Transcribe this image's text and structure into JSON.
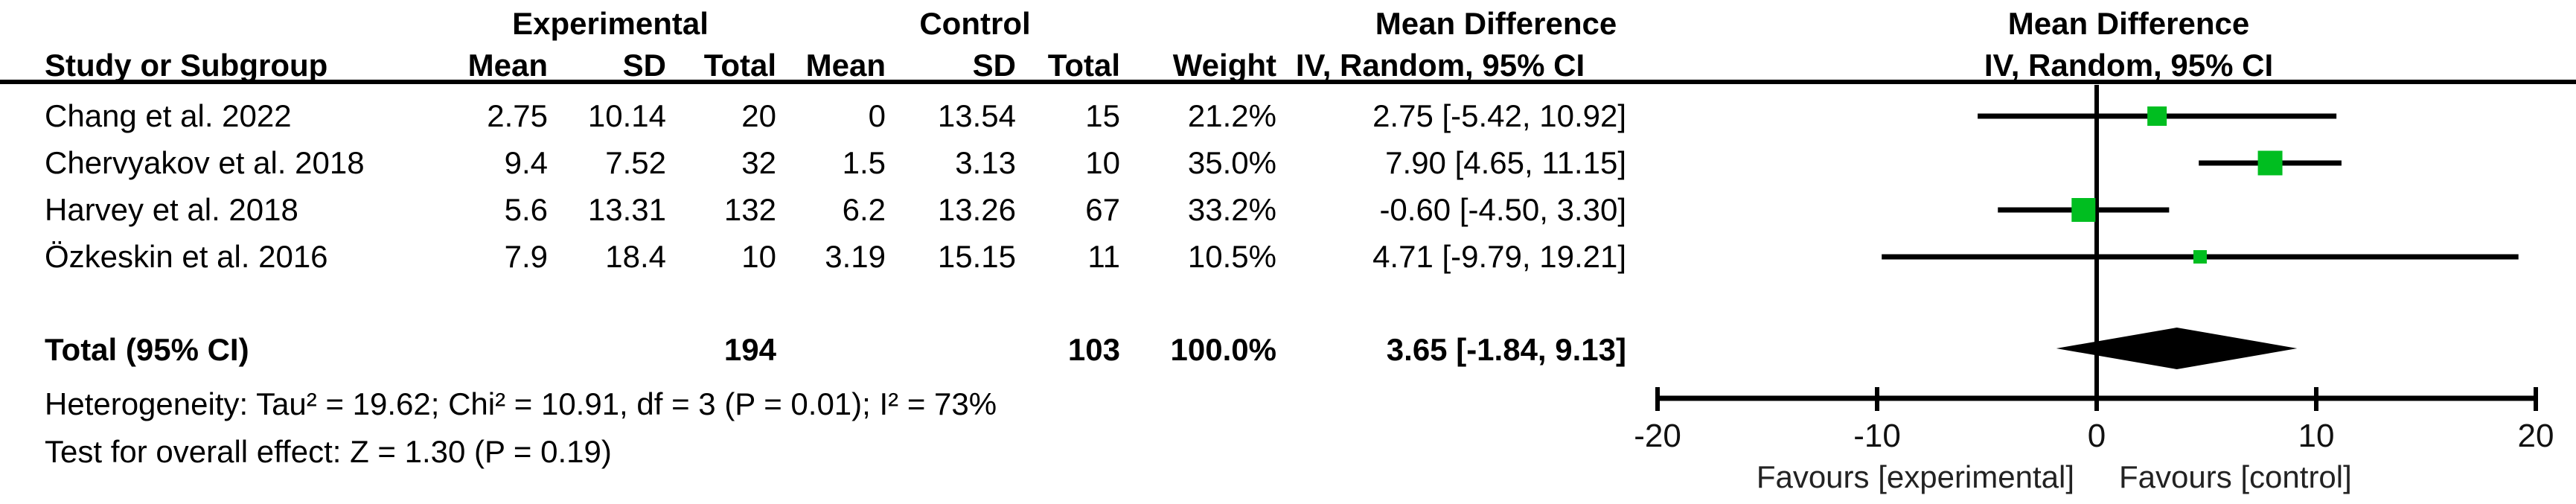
{
  "chart_data": {
    "type": "forest",
    "title": "",
    "effect_measure": "Mean Difference",
    "model": "IV, Random, 95% CI",
    "header": {
      "study": "Study or Subgroup",
      "group_experimental": "Experimental",
      "group_control": "Control",
      "mean": "Mean",
      "sd": "SD",
      "total": "Total",
      "weight": "Weight",
      "md_text_line1": "Mean Difference",
      "md_text_line2": "IV, Random, 95% CI",
      "md_plot_line1": "Mean Difference",
      "md_plot_line2": "IV, Random, 95% CI"
    },
    "studies": [
      {
        "study": "Chang et al. 2022",
        "mean_e": "2.75",
        "sd_e": "10.14",
        "total_e": "20",
        "mean_c": "0",
        "sd_c": "13.54",
        "total_c": "15",
        "weight": "21.2%",
        "weight_pct": 21.2,
        "ci_text": "2.75 [-5.42, 10.92]",
        "md": 2.75,
        "ci_low": -5.42,
        "ci_high": 10.92
      },
      {
        "study": "Chervyakov et al. 2018",
        "mean_e": "9.4",
        "sd_e": "7.52",
        "total_e": "32",
        "mean_c": "1.5",
        "sd_c": "3.13",
        "total_c": "10",
        "weight": "35.0%",
        "weight_pct": 35.0,
        "ci_text": "7.90 [4.65, 11.15]",
        "md": 7.9,
        "ci_low": 4.65,
        "ci_high": 11.15
      },
      {
        "study": "Harvey et al. 2018",
        "mean_e": "5.6",
        "sd_e": "13.31",
        "total_e": "132",
        "mean_c": "6.2",
        "sd_c": "13.26",
        "total_c": "67",
        "weight": "33.2%",
        "weight_pct": 33.2,
        "ci_text": "-0.60 [-4.50, 3.30]",
        "md": -0.6,
        "ci_low": -4.5,
        "ci_high": 3.3
      },
      {
        "study": "Özkeskin et al. 2016",
        "mean_e": "7.9",
        "sd_e": "18.4",
        "total_e": "10",
        "mean_c": "3.19",
        "sd_c": "15.15",
        "total_c": "11",
        "weight": "10.5%",
        "weight_pct": 10.5,
        "ci_text": "4.71 [-9.79, 19.21]",
        "md": 4.71,
        "ci_low": -9.79,
        "ci_high": 19.21
      }
    ],
    "total": {
      "label": "Total (95% CI)",
      "total_e": "194",
      "total_c": "103",
      "weight": "100.0%",
      "ci_text": "3.65 [-1.84, 9.13]",
      "md": 3.65,
      "ci_low": -1.84,
      "ci_high": 9.13
    },
    "heterogeneity": "Heterogeneity: Tau² = 19.62; Chi² = 10.91, df = 3 (P = 0.01); I² = 73%",
    "overall_effect": "Test for overall effect: Z = 1.30 (P = 0.19)",
    "axis": {
      "min": -20,
      "max": 20,
      "ticks": [
        "-20",
        "-10",
        "0",
        "10",
        "20"
      ],
      "tick_values": [
        -20,
        -10,
        0,
        10,
        20
      ],
      "favours_left": "Favours [experimental]",
      "favours_right": "Favours [control]"
    },
    "colors": {
      "marker_green": "#00BE20",
      "line_black": "#000000"
    }
  }
}
